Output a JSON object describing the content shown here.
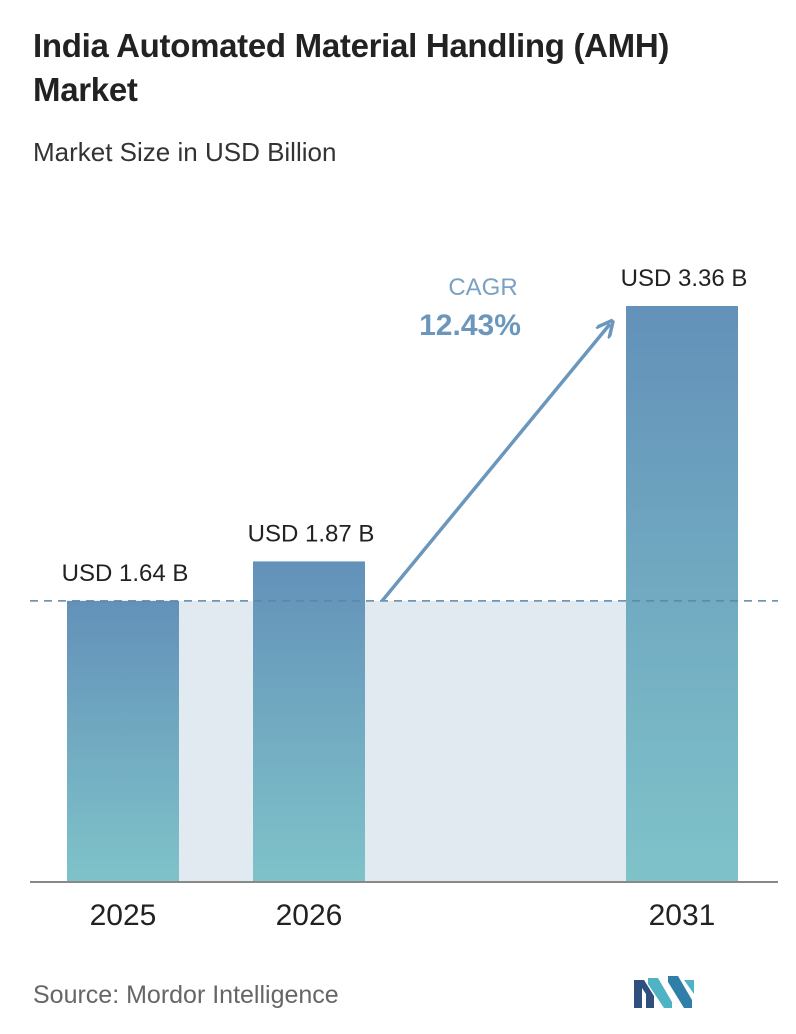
{
  "header": {
    "title": "India Automated Material Handling (AMH) Market",
    "subtitle": "Market Size in USD Billion"
  },
  "chart_data": {
    "type": "bar",
    "title": "India Automated Material Handling (AMH) Market",
    "subtitle": "Market Size in USD Billion",
    "categories": [
      "2025",
      "2026",
      "2031"
    ],
    "values": [
      1.64,
      1.87,
      3.36
    ],
    "value_labels": [
      "USD 1.64 B",
      "USD 1.87 B",
      "USD 3.36 B"
    ],
    "ylim": [
      0,
      3.36
    ],
    "grid": false,
    "cagr_label": "CAGR",
    "cagr_value": "12.43%",
    "colors": {
      "bar_top": "#6391b9",
      "bar_bottom": "#7fc3c9",
      "band": "#e1eaf1",
      "dashed_line": "#5b86a8",
      "arrow": "#6b97bd",
      "cagr_label": "#7aa1c4",
      "cagr_value": "#6b97bd",
      "axis": "#888888"
    }
  },
  "footer": {
    "source": "Source:  Mordor Intelligence",
    "logo_icon": "mordor-intelligence-logo-icon"
  }
}
